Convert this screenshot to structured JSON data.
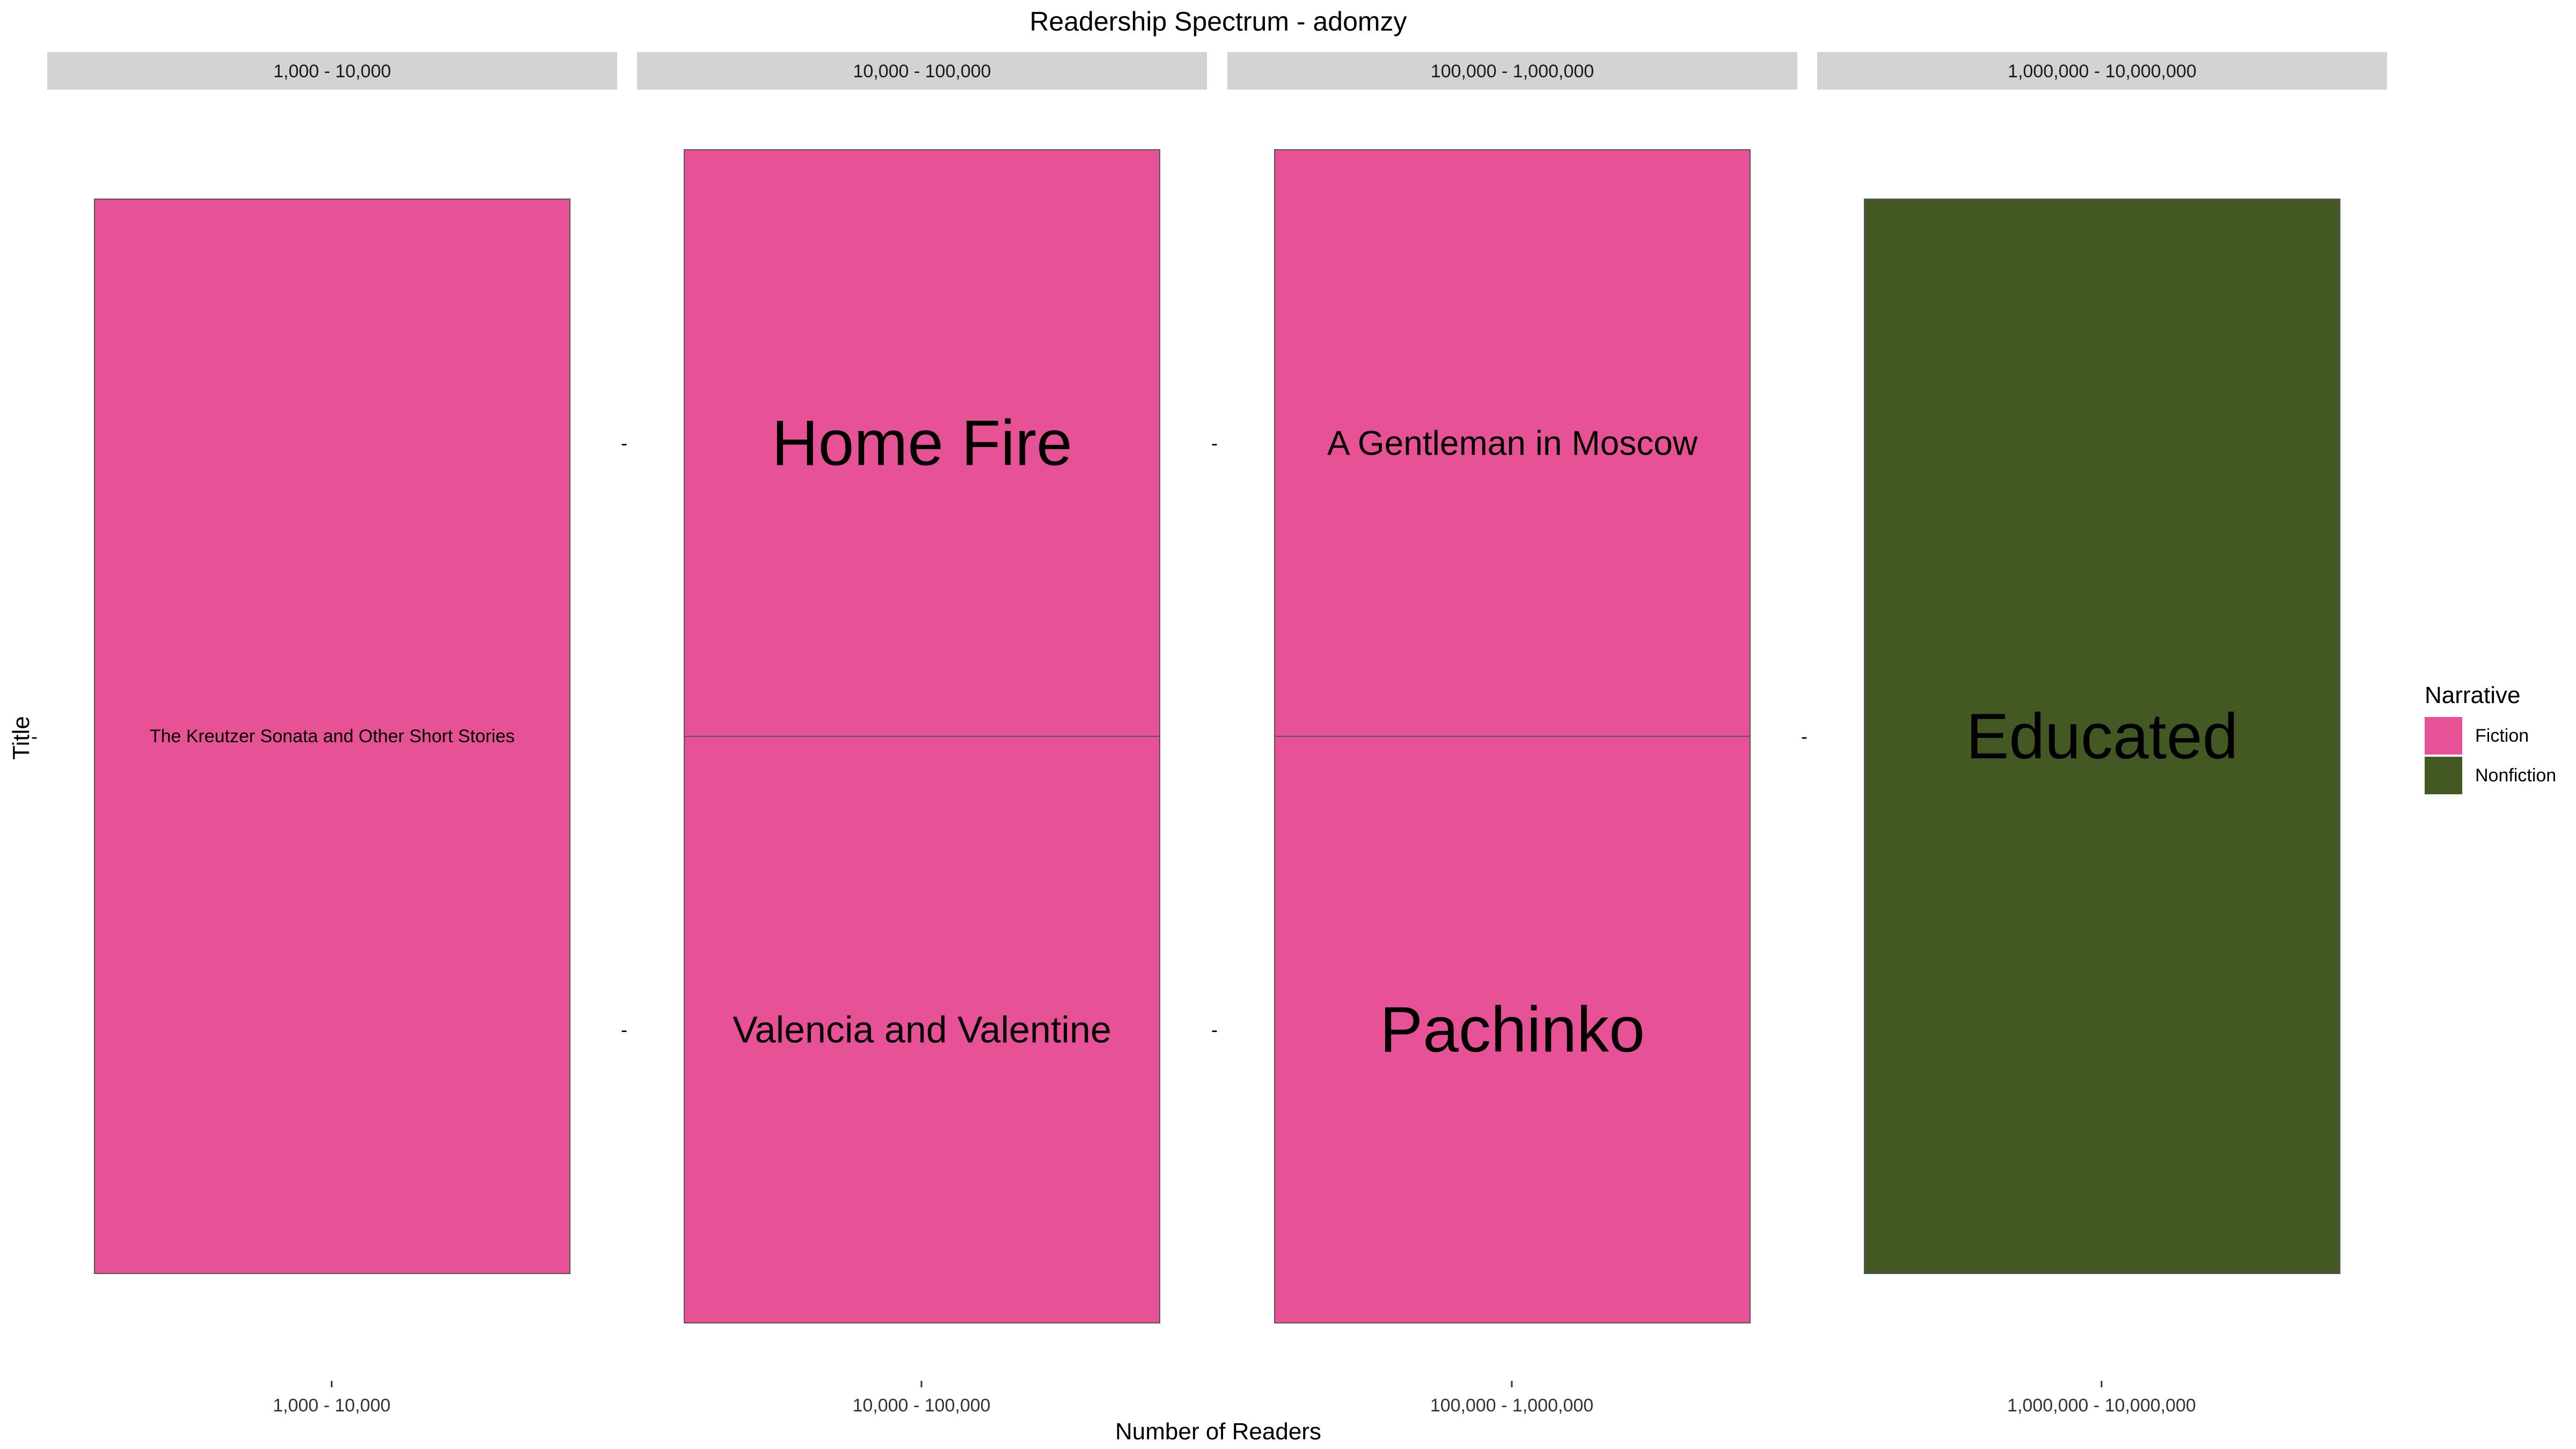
{
  "chart_data": {
    "type": "treemap",
    "title": "Readership Spectrum - adomzy",
    "xlabel": "Number of Readers",
    "ylabel": "Title",
    "facet_variable": "Number of Readers",
    "facets": [
      {
        "label": "1,000 - 10,000",
        "items": [
          {
            "title": "The Kreutzer Sonata and Other Short Stories",
            "narrative": "Fiction"
          }
        ]
      },
      {
        "label": "10,000 - 100,000",
        "items": [
          {
            "title": "Home Fire",
            "narrative": "Fiction"
          },
          {
            "title": "Valencia and Valentine",
            "narrative": "Fiction"
          }
        ]
      },
      {
        "label": "100,000 - 1,000,000",
        "items": [
          {
            "title": "A Gentleman in Moscow",
            "narrative": "Fiction"
          },
          {
            "title": "Pachinko",
            "narrative": "Fiction"
          }
        ]
      },
      {
        "label": "1,000,000 - 10,000,000",
        "items": [
          {
            "title": "Educated",
            "narrative": "Nonfiction"
          }
        ]
      }
    ],
    "y_tick_label": "-",
    "legend": {
      "title": "Narrative",
      "position": "right",
      "entries": [
        {
          "name": "Fiction",
          "color": "#E75297"
        },
        {
          "name": "Nonfiction",
          "color": "#435823"
        }
      ]
    },
    "strip_color": "#D3D3D3",
    "border_color": "#555555",
    "grid": false
  }
}
